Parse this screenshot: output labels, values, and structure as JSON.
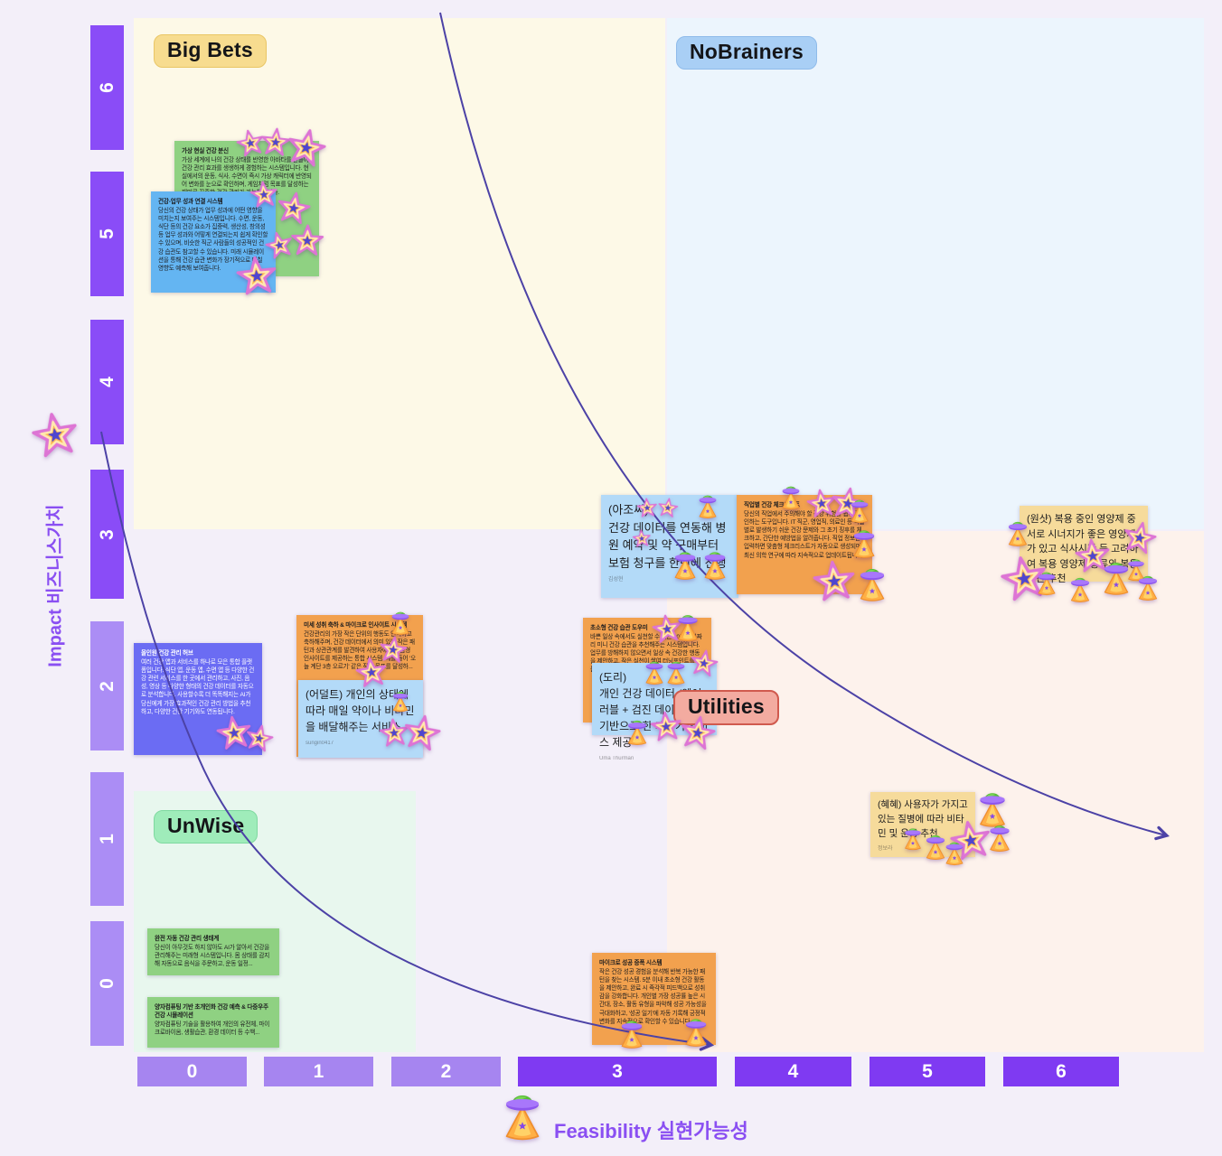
{
  "axes": {
    "y": {
      "label": "Impact 비즈니스가치",
      "ticks": [
        "6",
        "5",
        "4",
        "3",
        "2",
        "1",
        "0"
      ]
    },
    "x": {
      "label": "Feasibility 실현가능성",
      "ticks": [
        "0",
        "1",
        "2",
        "3",
        "4",
        "5",
        "6"
      ]
    }
  },
  "quadrants": {
    "big_bets": "Big Bets",
    "no_brainers": "NoBrainers",
    "unwise": "UnWise",
    "utilities": "Utilities"
  },
  "notes": {
    "vr_avatar": {
      "title": "가상 현실 건강 분신",
      "body": "가상 세계에 나의 건강 상태를 반영한 아바타를 만들어 건강 관리 효과를 생생하게 경험하는 시스템입니다. 현실에서의 운동, 식사, 수면이 즉시 가상 캐릭터에 반영되어 변화를 눈으로 확인하며, 게임처럼 목표를 달성하는 재미로 꾸준한 건강 관리가 가능해집니다."
    },
    "work_link": {
      "title": "건강-업무 성과 연결 시스템",
      "body": "당신의 건강 상태가 업무 성과에 어떤 영향을 미치는지 보여주는 시스템입니다. 수면, 운동, 식단 등의 건강 요소가 집중력, 생산성, 창의성 등 업무 성과와 어떻게 연결되는지 쉽게 확인할 수 있으며, 비슷한 직군 사람들의 성공적인 건강 습관도 참고할 수 있습니다. 미래 시뮬레이션을 통해 건강 습관 변화가 장기적으로 미칠 영향도 예측해 보여줍니다."
    },
    "ajossi": {
      "body": "(아조씨)\n건강 데이터를 연동해 병원 예약 및 약 구매부터 보험 청구를 한번에 진행",
      "signature": "김성현"
    },
    "job_checklist": {
      "title": "직업별 건강 체크리스트",
      "body": "당신의 직업에서 주의해야 할 건강 위험을 쉽게 확인하는 도구입니다. IT 직군, 영업직, 의료인 등 직업별로 발생하기 쉬운 건강 문제와 그 초기 징후를 체크하고, 간단한 예방법을 알려줍니다. 직업 정보만 입력하면 맞춤형 체크리스트가 자동으로 생성되며, 최신 의학 연구에 따라 지속적으로 업데이트됩니다."
    },
    "oneshot": {
      "body": "(원샷) 복용 중인 영양제 중 서로 시너지가 좋은 영양제가 있고 식사시간 등 고려하여 복용 영양제 종류와 복용 시간 추천"
    },
    "micro_insight": {
      "title": "미세 성취 축하 & 마이크로 인사이트 시스템",
      "body": "건강관리의 가장 작은 단위의 행동도 인식하고 축하해주며, 건강 데이터에서 의미 있는 작은 패턴과 상관관계를 발견하여 사용자에게 맞춤형 인사이트를 제공하는 통합 시스템. 예를 들어 '오늘 계단 3층 오르기' 같은 작은 목표를 달성하..."
    },
    "adult": {
      "body": "(어덜트) 개인의 상태에 따라 매일 약이나 비타민을 배달해주는 서비스",
      "signature": "sungin0417"
    },
    "mini_habit": {
      "title": "초소형 건강 습관 도우미",
      "body": "바쁜 일상 속에서도 실천할 수 있는 30초~2분짜리 미니 건강 습관을 추천해주는 시스템입니다. 업무를 방해하지 않으면서 일상 속 건강한 행동을 제안하고, 작은 실천이 쌓여 터닝포인트를 만들어 줍니다."
    },
    "dori": {
      "body": "(도리)\n개인 건강 데이터 (웨어러블 + 검진 데이터)를 기반으로 한 계산기 서비스 제공",
      "signature": "Uma Thurman"
    },
    "hyehye": {
      "body": "(혜혜) 사용자가 가지고 있는 질병에 따라 비타민 및 운동 추천",
      "signature": "정보라"
    },
    "allinone": {
      "title": "올인원 건강 관리 허브",
      "body": "여러 건강 앱과 서비스를 하나로 모은 통합 플랫폼입니다. 식단 앱, 운동 앱, 수면 앱 등 다양한 건강 관련 서비스를 한 곳에서 관리하고, 사진, 음성, 영상 등 다양한 형태의 건강 데이터를 자동으로 분석합니다. 사용할수록 더 똑똑해지는 AI가 당신에게 가장 효과적인 건강 관리 방법을 추천하고, 다양한 건강 기기와도 연동됩니다."
    },
    "auto_eco": {
      "title": "완전 자동 건강 관리 생태계",
      "body": "당신이 아무것도 하지 않아도 AI가 알아서 건강을 관리해주는 미래형 시스템입니다. 몸 상태를 감지해 자동으로 음식을 주문하고, 운동 일정..."
    },
    "quantum": {
      "title": "양자컴퓨팅 기반 초개인화 건강 예측 & 다중우주 건강 시뮬레이션",
      "body": "양자컴퓨팅 기술을 활용하여 개인의 유전체, 마이크로바이옴, 생활습관, 환경 데이터 등 수백..."
    },
    "micro_success": {
      "title": "마이크로 성공 증폭 시스템",
      "body": "작은 건강 성공 경험을 분석해 반복 가능한 패턴을 찾는 시스템. 5분 이내 초소형 건강 활동을 제안하고, 완료 시 즉각적 피드백으로 성취감을 강화합니다. 개인별 가장 성공률 높은 시간대, 장소, 활동 유형을 파악해 성공 가능성을 극대화하고, '성공 일기'에 자동 기록해 긍정적 변화를 지속적으로 확인할 수 있습니다."
    }
  },
  "icons": {
    "star_sticker": "impact-star-sticker",
    "ufo_sticker": "feasibility-ufo-sticker"
  },
  "colors": {
    "accent_purple": "#8a4ff2",
    "axis_dark": "#7f3af2",
    "axis_light": "#a685f0",
    "curve": "#4c42a6",
    "note_green": "#8fd182",
    "note_blue": "#64b5f2",
    "note_light_blue": "#b3daf8",
    "note_orange": "#f2a14e",
    "note_yellow": "#f6db9b",
    "note_purple": "#6b6cf3",
    "quadrant_bigbets_bg": "#fdf9e7",
    "quadrant_nobrainers_bg": "#ecf5fd",
    "quadrant_utilities_bg": "#fdf2ec",
    "quadrant_unwise_bg": "#e8f7ee",
    "label_bigbets_bg": "#f7dc8f",
    "label_nobrainers_bg": "#a9cff5",
    "label_unwise_bg": "#9fecba",
    "label_utilities_bg": "#f3aba0"
  }
}
